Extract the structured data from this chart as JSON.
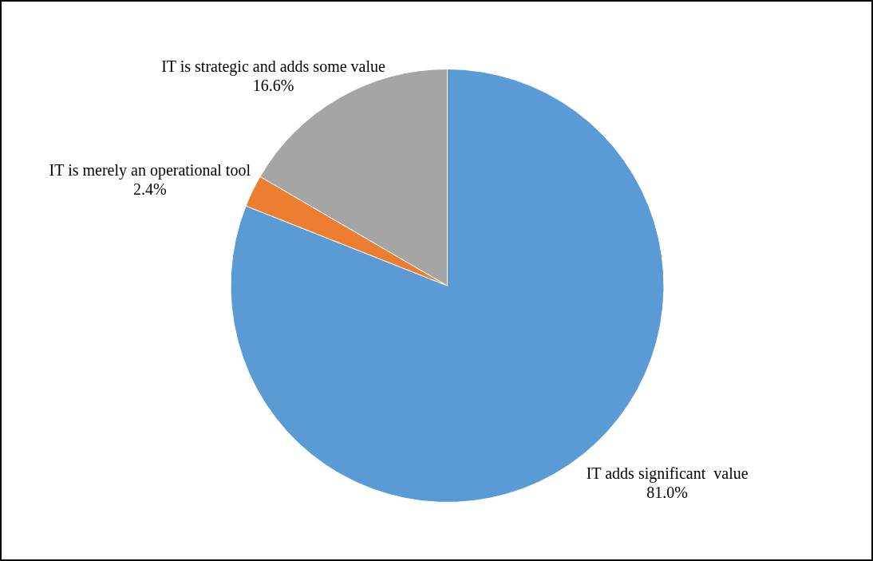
{
  "chart_data": {
    "type": "pie",
    "categories": [
      "IT adds significant  value",
      "IT is merely an operational tool",
      "IT is strategic and adds some value"
    ],
    "values": [
      81.0,
      2.4,
      16.6
    ],
    "colors": [
      "#5b9bd5",
      "#ed7d31",
      "#a5a5a5"
    ],
    "value_labels": [
      "81.0%",
      "2.4%",
      "16.6%"
    ],
    "legend": false
  }
}
